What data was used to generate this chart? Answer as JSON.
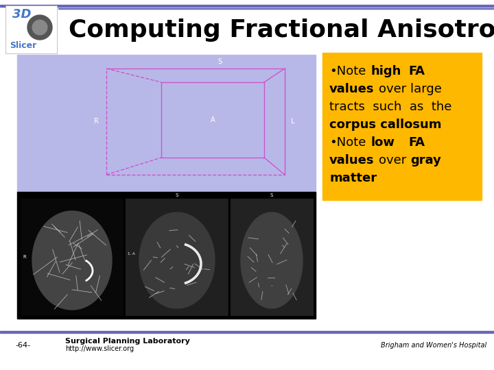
{
  "title": "Computing Fractional Anisotropy",
  "title_fontsize": 26,
  "title_color": "#000000",
  "background_color": "#ffffff",
  "top_bar_color": "#6666bb",
  "bottom_bar_color": "#6666bb",
  "main_panel_bg": "#b8b8e8",
  "yellow_box_color": "#FFB800",
  "pink_color": "#cc55cc",
  "label_S": "S",
  "label_R": "R",
  "label_A": "A",
  "label_L": "L",
  "footer_left_bold": "Surgical Planning Laboratory",
  "footer_left_normal": "http://www.slicer.org",
  "footer_right": "Brigham and Women's Hospital",
  "footer_page": "-64-"
}
